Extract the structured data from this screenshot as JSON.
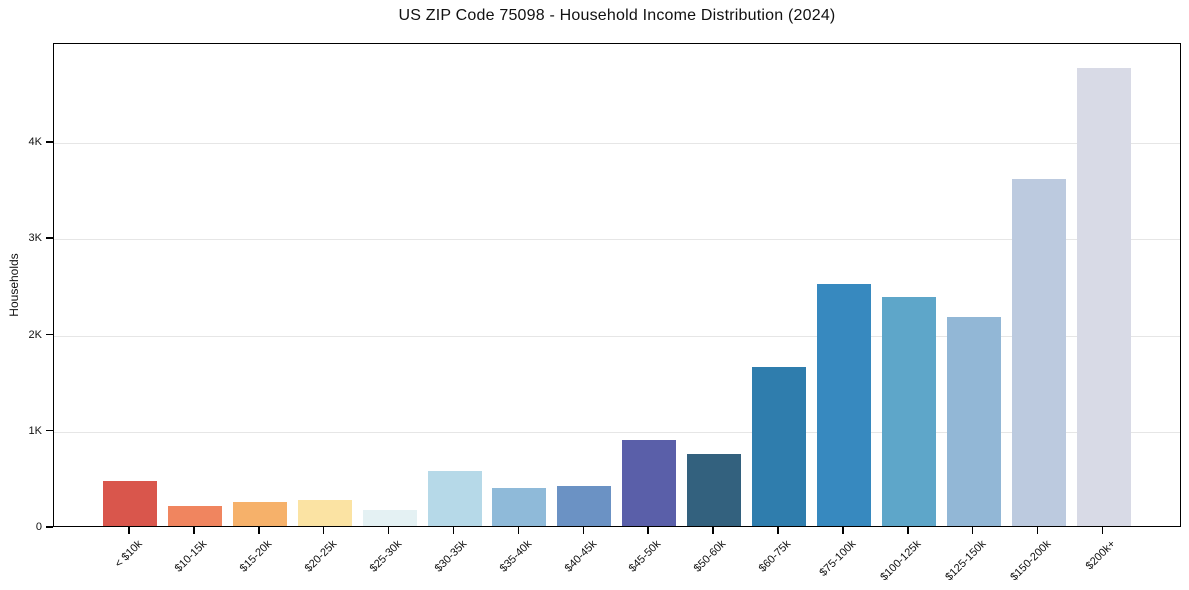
{
  "title": "US ZIP Code 75098 - Household Income Distribution (2024)",
  "ylabel": "Households",
  "chart_data": {
    "type": "bar",
    "title": "US ZIP Code 75098 - Household Income Distribution (2024)",
    "xlabel": "",
    "ylabel": "Households",
    "categories": [
      "< $10k",
      "$10-15k",
      "$15-20k",
      "$20-25k",
      "$25-30k",
      "$30-35k",
      "$35-40k",
      "$40-45k",
      "$45-50k",
      "$50-60k",
      "$60-75k",
      "$75-100k",
      "$100-125k",
      "$125-150k",
      "$150-200k",
      "$200k+"
    ],
    "values": [
      470,
      210,
      250,
      270,
      170,
      570,
      400,
      420,
      890,
      750,
      1650,
      2520,
      2380,
      2170,
      3610,
      4760
    ],
    "bar_colors": [
      "#d9564c",
      "#f0855f",
      "#f6b16a",
      "#fbe3a3",
      "#e4f1f3",
      "#b6d9e8",
      "#8fbad9",
      "#6b92c4",
      "#5a5fa9",
      "#33617e",
      "#2f7dad",
      "#3789bf",
      "#5ea6c9",
      "#92b7d6",
      "#bccadf",
      "#d8dae6"
    ],
    "y_ticks": [
      {
        "label": "0",
        "value": 0
      },
      {
        "label": "1K",
        "value": 1000
      },
      {
        "label": "2K",
        "value": 2000
      },
      {
        "label": "3K",
        "value": 3000
      },
      {
        "label": "4K",
        "value": 4000
      }
    ],
    "ylim": [
      0,
      5030
    ],
    "grid": "horizontal",
    "gridline_color": "#e6e6e6",
    "axis_color": "#000000",
    "background": "#ffffff",
    "legend": "none"
  }
}
